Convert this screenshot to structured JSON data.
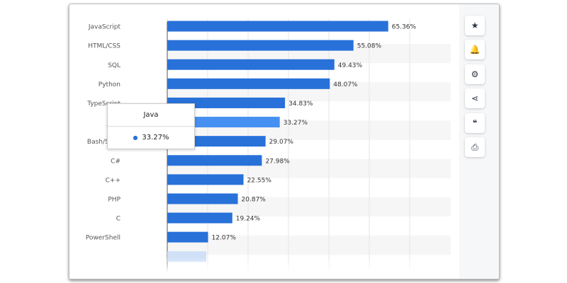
{
  "chart_data": {
    "type": "bar",
    "orientation": "horizontal",
    "categories": [
      "JavaScript",
      "HTML/CSS",
      "SQL",
      "Python",
      "TypeScript",
      "Java",
      "Bash/Shell",
      "C#",
      "C++",
      "PHP",
      "C",
      "PowerShell"
    ],
    "values": [
      65.36,
      55.08,
      49.43,
      48.07,
      34.83,
      33.27,
      29.07,
      27.98,
      22.55,
      20.87,
      19.24,
      12.07
    ],
    "labels": [
      "65.36%",
      "55.08%",
      "49.43%",
      "48.07%",
      "34.83%",
      "33.27%",
      "29.07%",
      "27.98%",
      "22.55%",
      "20.87%",
      "19.24%",
      "12.07%"
    ],
    "highlighted": "Java",
    "xlim": [
      0,
      70
    ],
    "grid": true,
    "colors": {
      "bar": "#2871d9",
      "highlight": "#4590f0"
    }
  },
  "tooltip": {
    "title": "Java",
    "value": "33.27%"
  },
  "sidebar": [
    {
      "icon": "star-icon",
      "glyph": "★"
    },
    {
      "icon": "bell-icon",
      "glyph": "🔔"
    },
    {
      "icon": "gear-icon",
      "glyph": "⚙"
    },
    {
      "icon": "share-icon",
      "glyph": "⋖"
    },
    {
      "icon": "quote-icon",
      "glyph": "❝"
    },
    {
      "icon": "print-icon",
      "glyph": "⎙"
    }
  ]
}
